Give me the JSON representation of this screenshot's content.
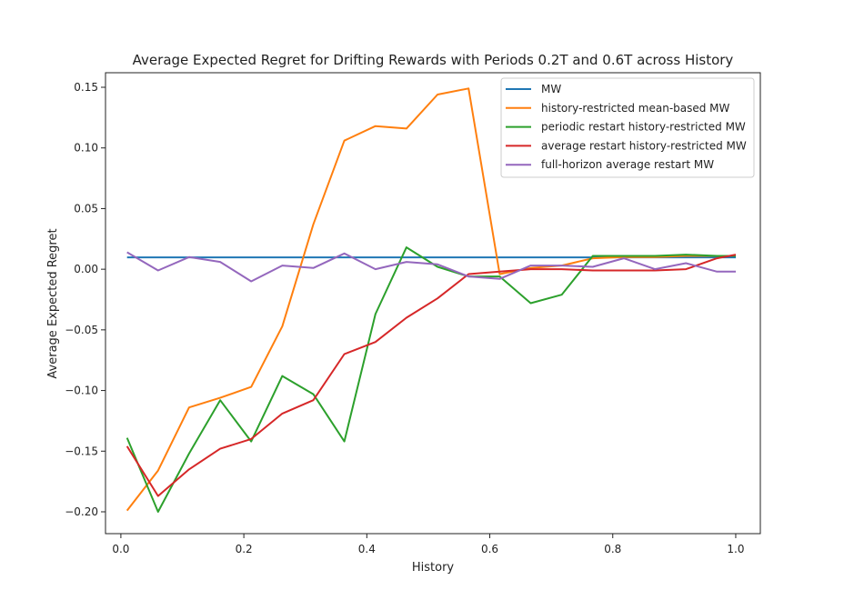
{
  "chart_data": {
    "type": "line",
    "title": "Average Expected Regret for Drifting Rewards with Periods 0.2T and 0.6T across History",
    "xlabel": "History",
    "ylabel": "Average Expected Regret",
    "xlim": [
      -0.025,
      1.04
    ],
    "ylim": [
      -0.218,
      0.162
    ],
    "xticks": [
      0.0,
      0.2,
      0.4,
      0.6,
      0.8,
      1.0
    ],
    "xtick_labels": [
      "0.0",
      "0.2",
      "0.4",
      "0.6",
      "0.8",
      "1.0"
    ],
    "yticks": [
      -0.2,
      -0.15,
      -0.1,
      -0.05,
      0.0,
      0.05,
      0.1,
      0.15
    ],
    "ytick_labels": [
      "−0.20",
      "−0.15",
      "−0.10",
      "−0.05",
      "0.00",
      "0.05",
      "0.10",
      "0.15"
    ],
    "grid": false,
    "legend_position": "top-right",
    "x": [
      0.01,
      0.0605,
      0.111,
      0.1615,
      0.212,
      0.2625,
      0.313,
      0.3635,
      0.414,
      0.4645,
      0.515,
      0.5655,
      0.616,
      0.6665,
      0.717,
      0.7675,
      0.818,
      0.8685,
      0.919,
      0.9695,
      1.0
    ],
    "series": [
      {
        "name": "MW",
        "color": "#1f77b4",
        "x": [
          0.01,
          1.0
        ],
        "values": [
          0.0098,
          0.0098
        ]
      },
      {
        "name": "history-restricted mean-based MW",
        "color": "#ff7f0e",
        "values": [
          -0.199,
          -0.166,
          -0.114,
          -0.106,
          -0.097,
          -0.047,
          0.037,
          0.106,
          0.118,
          0.116,
          0.144,
          0.149,
          -0.004,
          0.001,
          0.003,
          0.009,
          0.01,
          0.01,
          0.011,
          0.011,
          0.011
        ]
      },
      {
        "name": "periodic restart history-restricted MW",
        "color": "#2ca02c",
        "values": [
          -0.139,
          -0.2,
          -0.152,
          -0.108,
          -0.142,
          -0.088,
          -0.103,
          -0.142,
          -0.037,
          0.018,
          0.002,
          -0.006,
          -0.006,
          -0.028,
          -0.021,
          0.011,
          0.011,
          0.011,
          0.012,
          0.011,
          0.011
        ]
      },
      {
        "name": "average restart history-restricted MW",
        "color": "#d62728",
        "values": [
          -0.146,
          -0.187,
          -0.165,
          -0.148,
          -0.14,
          -0.119,
          -0.108,
          -0.07,
          -0.06,
          -0.04,
          -0.024,
          -0.004,
          -0.002,
          0.0,
          0.0,
          -0.001,
          -0.001,
          -0.001,
          0.0,
          0.009,
          0.012
        ]
      },
      {
        "name": "full-horizon average restart MW",
        "color": "#9467bd",
        "values": [
          0.014,
          -0.001,
          0.01,
          0.006,
          -0.01,
          0.003,
          0.001,
          0.013,
          0.0,
          0.006,
          0.004,
          -0.006,
          -0.008,
          0.003,
          0.003,
          0.002,
          0.009,
          0.0,
          0.005,
          -0.002,
          -0.002
        ]
      }
    ]
  }
}
